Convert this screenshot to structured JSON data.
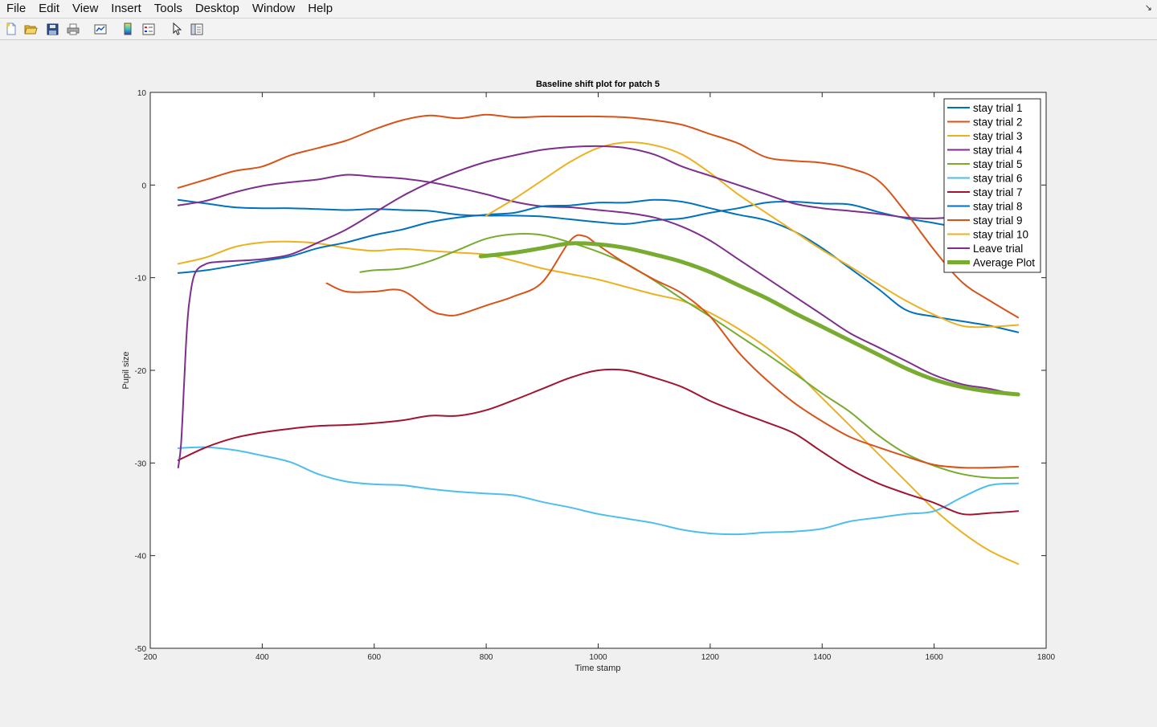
{
  "menu": {
    "items": [
      "File",
      "Edit",
      "View",
      "Insert",
      "Tools",
      "Desktop",
      "Window",
      "Help"
    ],
    "corner_glyph": "↘"
  },
  "toolbar": {
    "buttons": [
      {
        "name": "new-figure-icon"
      },
      {
        "name": "open-file-icon"
      },
      {
        "name": "save-icon"
      },
      {
        "name": "print-icon"
      },
      {
        "name": "link-plot-icon"
      },
      {
        "name": "insert-colorbar-icon"
      },
      {
        "name": "insert-legend-icon"
      },
      {
        "name": "edit-plot-arrow-icon"
      },
      {
        "name": "show-plot-tools-icon"
      }
    ]
  },
  "chart_data": {
    "type": "line",
    "title": "Baseline shift plot for patch 5",
    "xlabel": "Time stamp",
    "ylabel": "Pupil size",
    "xlim": [
      200,
      1800
    ],
    "ylim": [
      -50,
      10
    ],
    "xticks": [
      200,
      400,
      600,
      800,
      1000,
      1200,
      1400,
      1600,
      1800
    ],
    "yticks": [
      10,
      0,
      -10,
      -20,
      -30,
      -40,
      -50
    ],
    "grid": false,
    "legend_position": "top-right",
    "series": [
      {
        "name": "stay trial 1",
        "color": "#0072BD",
        "width": 2,
        "x": [
          250,
          300,
          350,
          400,
          450,
          500,
          550,
          600,
          650,
          700,
          750,
          800,
          850,
          900,
          950,
          1000,
          1050,
          1100,
          1150,
          1200,
          1250,
          1300,
          1350,
          1400,
          1450,
          1500,
          1550,
          1600,
          1650
        ],
        "y": [
          -1.6,
          -2.0,
          -2.4,
          -2.5,
          -2.5,
          -2.6,
          -2.7,
          -2.6,
          -2.7,
          -2.8,
          -3.2,
          -3.3,
          -3.3,
          -3.4,
          -3.7,
          -4.0,
          -4.2,
          -3.8,
          -3.6,
          -3.0,
          -2.5,
          -1.9,
          -1.8,
          -2.0,
          -2.1,
          -2.9,
          -3.6,
          -4.1,
          -4.7
        ]
      },
      {
        "name": "stay trial 2",
        "color": "#D95319",
        "width": 2,
        "x": [
          250,
          300,
          350,
          400,
          450,
          500,
          550,
          600,
          650,
          700,
          750,
          800,
          850,
          900,
          950,
          1000,
          1050,
          1100,
          1150,
          1200,
          1250,
          1300,
          1350,
          1400,
          1450,
          1500,
          1550,
          1600,
          1650,
          1700,
          1750
        ],
        "y": [
          -0.3,
          0.6,
          1.5,
          2.0,
          3.2,
          4.0,
          4.8,
          6.0,
          7.0,
          7.5,
          7.2,
          7.6,
          7.3,
          7.4,
          7.4,
          7.4,
          7.3,
          7.0,
          6.5,
          5.5,
          4.5,
          3.0,
          2.6,
          2.4,
          1.8,
          0.5,
          -3.0,
          -7.0,
          -10.5,
          -12.5,
          -14.3
        ]
      },
      {
        "name": "stay trial 3",
        "color": "#EDB120",
        "width": 2,
        "x": [
          250,
          300,
          350,
          400,
          450,
          500,
          550,
          600,
          650,
          700,
          750,
          800,
          850,
          900,
          950,
          1000,
          1050,
          1100,
          1150,
          1200,
          1250,
          1300,
          1350,
          1400,
          1450,
          1500,
          1550,
          1600,
          1650,
          1700,
          1750
        ],
        "y": [
          -8.5,
          -7.8,
          -6.7,
          -6.2,
          -6.1,
          -6.3,
          -6.8,
          -7.1,
          -6.9,
          -7.1,
          -7.3,
          -7.5,
          -8.2,
          -9.0,
          -9.6,
          -10.2,
          -11.0,
          -11.8,
          -12.5,
          -13.8,
          -15.5,
          -17.5,
          -20.0,
          -23.0,
          -26.0,
          -29.0,
          -32.0,
          -35.0,
          -37.5,
          -39.5,
          -40.9
        ]
      },
      {
        "name": "stay trial 4",
        "color": "#7E2F8E",
        "width": 2,
        "x": [
          250,
          300,
          350,
          400,
          450,
          500,
          550,
          600,
          650,
          700,
          750,
          800,
          850,
          900,
          950,
          1000,
          1050,
          1100,
          1150,
          1200,
          1250,
          1300,
          1350,
          1400,
          1450,
          1500,
          1550,
          1600,
          1650,
          1700,
          1750
        ],
        "y": [
          -2.2,
          -1.7,
          -0.8,
          -0.1,
          0.3,
          0.6,
          1.1,
          0.9,
          0.7,
          0.3,
          -0.3,
          -1.0,
          -1.8,
          -2.3,
          -2.4,
          -2.7,
          -3.0,
          -3.5,
          -4.5,
          -6.0,
          -8.0,
          -10.0,
          -12.0,
          -14.0,
          -16.0,
          -17.5,
          -19.0,
          -20.5,
          -21.5,
          -22.0,
          -22.7
        ]
      },
      {
        "name": "stay trial 5",
        "color": "#77AC30",
        "width": 2,
        "x": [
          575,
          600,
          650,
          700,
          750,
          800,
          850,
          900,
          950,
          1000,
          1050,
          1100,
          1150,
          1200,
          1250,
          1300,
          1350,
          1400,
          1450,
          1500,
          1550,
          1600,
          1650,
          1700,
          1750
        ],
        "y": [
          -9.4,
          -9.2,
          -9.0,
          -8.2,
          -7.0,
          -5.8,
          -5.3,
          -5.4,
          -6.2,
          -7.2,
          -8.5,
          -10.3,
          -12.3,
          -14.2,
          -16.2,
          -18.2,
          -20.3,
          -22.5,
          -24.5,
          -27.0,
          -29.0,
          -30.3,
          -31.2,
          -31.6,
          -31.6
        ]
      },
      {
        "name": "stay trial 6",
        "color": "#4DBEEE",
        "width": 2,
        "x": [
          250,
          300,
          350,
          400,
          450,
          500,
          550,
          600,
          650,
          700,
          750,
          800,
          850,
          900,
          950,
          1000,
          1050,
          1100,
          1150,
          1200,
          1250,
          1300,
          1350,
          1400,
          1450,
          1500,
          1550,
          1600,
          1650,
          1700,
          1750
        ],
        "y": [
          -28.4,
          -28.3,
          -28.6,
          -29.2,
          -29.9,
          -31.2,
          -32.0,
          -32.3,
          -32.4,
          -32.8,
          -33.1,
          -33.3,
          -33.5,
          -34.2,
          -34.8,
          -35.5,
          -36.0,
          -36.5,
          -37.2,
          -37.6,
          -37.7,
          -37.5,
          -37.4,
          -37.1,
          -36.3,
          -35.9,
          -35.5,
          -35.2,
          -33.7,
          -32.4,
          -32.2
        ]
      },
      {
        "name": "stay trial 7",
        "color": "#A2142F",
        "width": 2,
        "x": [
          250,
          300,
          350,
          400,
          450,
          500,
          550,
          600,
          650,
          700,
          750,
          800,
          850,
          900,
          950,
          1000,
          1050,
          1100,
          1150,
          1200,
          1250,
          1300,
          1350,
          1400,
          1450,
          1500,
          1550,
          1600,
          1650,
          1700,
          1750
        ],
        "y": [
          -29.7,
          -28.3,
          -27.3,
          -26.7,
          -26.3,
          -26.0,
          -25.9,
          -25.7,
          -25.4,
          -24.9,
          -24.9,
          -24.3,
          -23.2,
          -22.0,
          -20.8,
          -20.0,
          -20.0,
          -20.8,
          -21.8,
          -23.3,
          -24.5,
          -25.6,
          -26.8,
          -28.8,
          -30.7,
          -32.2,
          -33.3,
          -34.3,
          -35.5,
          -35.4,
          -35.2
        ]
      },
      {
        "name": "stay trial 8",
        "color": "#0072BD",
        "width": 2,
        "x": [
          250,
          300,
          350,
          400,
          450,
          500,
          550,
          600,
          650,
          700,
          750,
          800,
          850,
          900,
          950,
          1000,
          1050,
          1100,
          1150,
          1200,
          1250,
          1300,
          1350,
          1400,
          1450,
          1500,
          1550,
          1600,
          1650,
          1700,
          1750
        ],
        "y": [
          -9.5,
          -9.2,
          -8.7,
          -8.2,
          -7.7,
          -6.8,
          -6.2,
          -5.4,
          -4.8,
          -4.0,
          -3.5,
          -3.2,
          -3.0,
          -2.3,
          -2.2,
          -1.9,
          -1.9,
          -1.6,
          -1.8,
          -2.5,
          -3.2,
          -3.8,
          -5.0,
          -6.8,
          -9.0,
          -11.2,
          -13.5,
          -14.2,
          -14.7,
          -15.2,
          -15.9
        ]
      },
      {
        "name": "stay trial 9",
        "color": "#D95319",
        "width": 2,
        "x": [
          515,
          550,
          600,
          650,
          700,
          725,
          750,
          800,
          850,
          900,
          950,
          975,
          1000,
          1050,
          1100,
          1150,
          1200,
          1250,
          1300,
          1350,
          1400,
          1450,
          1500,
          1550,
          1600,
          1650,
          1700,
          1750
        ],
        "y": [
          -10.6,
          -11.5,
          -11.5,
          -11.4,
          -13.5,
          -14.0,
          -14.0,
          -13.0,
          -12.0,
          -10.5,
          -6.0,
          -5.5,
          -6.5,
          -8.5,
          -10.2,
          -11.7,
          -14.2,
          -18.0,
          -21.0,
          -23.5,
          -25.5,
          -27.2,
          -28.3,
          -29.3,
          -30.2,
          -30.5,
          -30.5,
          -30.4
        ]
      },
      {
        "name": "stay trial 10",
        "color": "#EDB120",
        "width": 2,
        "x": [
          800,
          850,
          900,
          950,
          1000,
          1050,
          1100,
          1150,
          1200,
          1250,
          1300,
          1350,
          1400,
          1450,
          1500,
          1550,
          1600,
          1650,
          1700,
          1750
        ],
        "y": [
          -3.3,
          -1.5,
          0.5,
          2.5,
          4.0,
          4.6,
          4.3,
          3.3,
          1.3,
          -1.0,
          -3.0,
          -5.0,
          -7.0,
          -8.8,
          -10.7,
          -12.5,
          -14.0,
          -15.2,
          -15.3,
          -15.1
        ]
      },
      {
        "name": "Leave trial",
        "color": "#7E2F8E",
        "width": 2,
        "x": [
          250,
          255,
          260,
          265,
          270,
          280,
          300,
          320,
          350,
          400,
          450,
          500,
          550,
          600,
          650,
          700,
          750,
          800,
          850,
          900,
          950,
          1000,
          1050,
          1100,
          1150,
          1200,
          1250,
          1300,
          1350,
          1400,
          1450,
          1500,
          1550,
          1600,
          1650
        ],
        "y": [
          -30.5,
          -28.0,
          -22.0,
          -16.0,
          -12.5,
          -9.5,
          -8.5,
          -8.3,
          -8.2,
          -8.0,
          -7.5,
          -6.2,
          -4.8,
          -3.0,
          -1.2,
          0.3,
          1.5,
          2.5,
          3.2,
          3.8,
          4.1,
          4.2,
          4.0,
          3.3,
          2.0,
          1.0,
          0.0,
          -1.0,
          -2.0,
          -2.5,
          -2.8,
          -3.1,
          -3.5,
          -3.6,
          -3.4
        ]
      },
      {
        "name": "Average Plot",
        "color": "#77AC30",
        "width": 5,
        "x": [
          790,
          850,
          900,
          950,
          1000,
          1050,
          1100,
          1150,
          1200,
          1250,
          1300,
          1350,
          1400,
          1450,
          1500,
          1550,
          1600,
          1650,
          1700,
          1750
        ],
        "y": [
          -7.7,
          -7.3,
          -6.8,
          -6.3,
          -6.4,
          -6.8,
          -7.5,
          -8.3,
          -9.4,
          -10.8,
          -12.2,
          -13.8,
          -15.3,
          -16.8,
          -18.3,
          -19.8,
          -21.0,
          -21.8,
          -22.3,
          -22.6
        ]
      }
    ]
  }
}
